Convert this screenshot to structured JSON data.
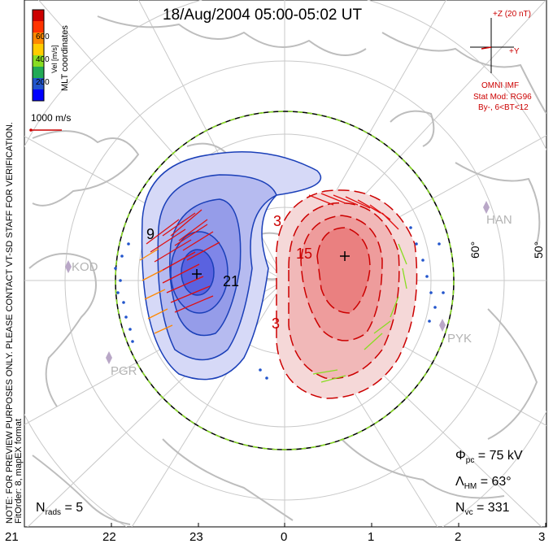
{
  "title": "18/Aug/2004 05:00-05:02 UT",
  "colorbar": {
    "label": "Vel [m/s]",
    "ticks": [
      "600",
      "400",
      "200"
    ],
    "colors": [
      "#cc0000",
      "#ff3300",
      "#ff8800",
      "#ffcc00",
      "#88dd22",
      "#22aa55",
      "#2255cc",
      "#0000ff"
    ]
  },
  "mlt_coords_label": "MLT coordinates",
  "scale_vector": {
    "label": "1000 m/s"
  },
  "imf": {
    "z_label": "+Z (20 nT)",
    "y_label": "+Y",
    "source": "OMNI IMF",
    "stat_mod": "Stat Mod: RG96",
    "condition": "By-, 6<BT<12"
  },
  "notice": "NOTE: FOR PREVIEW PURPOSES ONLY. PLEASE CONTACT VT-SD STAFF FOR VERIFICATION.",
  "fit_order": "FitOrder: 8, mapEX format",
  "stations": [
    "KOD",
    "PGR",
    "HAN",
    "PYK"
  ],
  "latitude_labels": [
    "60°",
    "50°"
  ],
  "contour_labels": [
    "9",
    "21",
    "3",
    "15",
    "3"
  ],
  "stats": {
    "phi_pc": {
      "symbol": "Φ",
      "sub": "pc",
      "value": "= 75 kV"
    },
    "lambda_hm": {
      "symbol": "Λ",
      "sub": "HM",
      "value": "= 63°"
    },
    "n_vc": {
      "symbol": "N",
      "sub": "vc",
      "value": "= 331"
    },
    "n_rads": {
      "symbol": "N",
      "sub": "rads",
      "value": "= 5"
    }
  },
  "mlt_labels": [
    "21",
    "22",
    "23",
    "0",
    "1",
    "2",
    "3"
  ],
  "colors": {
    "accent_red": "#cc0000",
    "neg_cell": "#0033cc",
    "pos_cell": "#cc0000"
  }
}
